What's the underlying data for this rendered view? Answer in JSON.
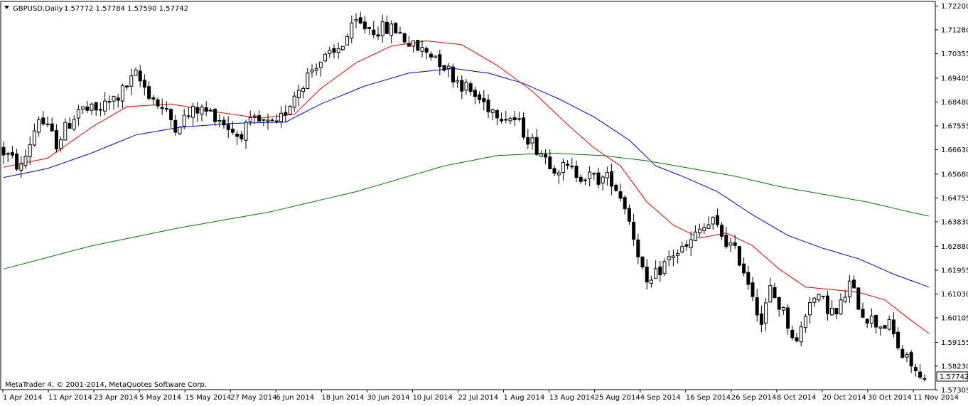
{
  "header": {
    "symbol": "GBPUSD,Daily",
    "ohlc": "1.57772 1.57784 1.57590 1.57742",
    "menu_icon": "triangle-down-icon"
  },
  "copyright": "MetaTrader 4, © 2001-2014, MetaQuotes Software Corp.",
  "current_price_label": "1.57742",
  "colors": {
    "background": "#ffffff",
    "candle_outline": "#000000",
    "candle_bull_fill": "#ffffff",
    "candle_bear_fill": "#000000",
    "ma_red": "#e00000",
    "ma_blue": "#0000c8",
    "ma_green": "#007800"
  },
  "chart_data": {
    "type": "candlestick",
    "grid": false,
    "ylim": [
      1.5732,
      1.7238
    ],
    "ytick_labels": [
      "1.72200",
      "1.71280",
      "1.70355",
      "1.69405",
      "1.68480",
      "1.67555",
      "1.66630",
      "1.65680",
      "1.64755",
      "1.63830",
      "1.62880",
      "1.61955",
      "1.61030",
      "1.60105",
      "1.59155",
      "1.58230",
      "1.57305"
    ],
    "xtick_labels": [
      "1 Apr 2014",
      "11 Apr 2014",
      "23 Apr 2014",
      "5 May 2014",
      "15 May 2014",
      "27 May 2014",
      "6 Jun 2014",
      "18 Jun 2014",
      "30 Jun 2014",
      "10 Jul 2014",
      "22 Jul 2014",
      "1 Aug 2014",
      "13 Aug 2014",
      "25 Aug 2014",
      "4 Sep 2014",
      "16 Sep 2014",
      "26 Sep 2014",
      "8 Oct 2014",
      "20 Oct 2014",
      "30 Oct 2014",
      "11 Nov 2014"
    ],
    "last_price": 1.57742,
    "ohlc_anchor": [
      [
        0,
        1.667
      ],
      [
        5,
        1.659
      ],
      [
        9,
        1.679
      ],
      [
        13,
        1.669
      ],
      [
        18,
        1.682
      ],
      [
        22,
        1.681
      ],
      [
        27,
        1.687
      ],
      [
        31,
        1.695
      ],
      [
        36,
        1.684
      ],
      [
        40,
        1.676
      ],
      [
        45,
        1.682
      ],
      [
        49,
        1.68
      ],
      [
        54,
        1.672
      ],
      [
        58,
        1.677
      ],
      [
        63,
        1.675
      ],
      [
        67,
        1.688
      ],
      [
        72,
        1.7
      ],
      [
        76,
        1.703
      ],
      [
        81,
        1.715
      ],
      [
        85,
        1.713
      ],
      [
        90,
        1.713
      ],
      [
        94,
        1.706
      ],
      [
        99,
        1.703
      ],
      [
        103,
        1.695
      ],
      [
        108,
        1.687
      ],
      [
        112,
        1.682
      ],
      [
        117,
        1.678
      ],
      [
        121,
        1.669
      ],
      [
        126,
        1.66
      ],
      [
        130,
        1.658
      ],
      [
        135,
        1.655
      ],
      [
        139,
        1.655
      ],
      [
        142,
        1.645
      ],
      [
        145,
        1.627
      ],
      [
        147,
        1.612
      ],
      [
        150,
        1.62
      ],
      [
        153,
        1.626
      ],
      [
        156,
        1.628
      ],
      [
        159,
        1.635
      ],
      [
        162,
        1.638
      ],
      [
        165,
        1.631
      ],
      [
        168,
        1.624
      ],
      [
        171,
        1.611
      ],
      [
        173,
        1.599
      ],
      [
        175,
        1.612
      ],
      [
        178,
        1.603
      ],
      [
        181,
        1.591
      ],
      [
        184,
        1.609
      ],
      [
        187,
        1.607
      ],
      [
        190,
        1.602
      ],
      [
        193,
        1.614
      ],
      [
        196,
        1.603
      ],
      [
        199,
        1.599
      ],
      [
        202,
        1.598
      ],
      [
        205,
        1.586
      ],
      [
        207,
        1.583
      ],
      [
        209,
        1.577
      ]
    ],
    "moving_averages": [
      {
        "name": "",
        "color": "#e00000",
        "points": [
          [
            0,
            1.6595
          ],
          [
            10,
            1.663
          ],
          [
            20,
            1.675
          ],
          [
            28,
            1.683
          ],
          [
            38,
            1.684
          ],
          [
            48,
            1.681
          ],
          [
            58,
            1.6785
          ],
          [
            66,
            1.68
          ],
          [
            72,
            1.69
          ],
          [
            80,
            1.7
          ],
          [
            88,
            1.7065
          ],
          [
            96,
            1.7085
          ],
          [
            104,
            1.707
          ],
          [
            112,
            1.699
          ],
          [
            120,
            1.689
          ],
          [
            128,
            1.676
          ],
          [
            134,
            1.667
          ],
          [
            140,
            1.66
          ],
          [
            146,
            1.646
          ],
          [
            152,
            1.637
          ],
          [
            158,
            1.632
          ],
          [
            164,
            1.634
          ],
          [
            170,
            1.629
          ],
          [
            176,
            1.62
          ],
          [
            182,
            1.613
          ],
          [
            188,
            1.612
          ],
          [
            194,
            1.611
          ],
          [
            200,
            1.608
          ],
          [
            206,
            1.6
          ],
          [
            210,
            1.595
          ]
        ]
      },
      {
        "name": "",
        "color": "#0000c8",
        "points": [
          [
            0,
            1.6555
          ],
          [
            10,
            1.659
          ],
          [
            20,
            1.665
          ],
          [
            30,
            1.672
          ],
          [
            40,
            1.675
          ],
          [
            52,
            1.6765
          ],
          [
            64,
            1.677
          ],
          [
            72,
            1.684
          ],
          [
            82,
            1.691
          ],
          [
            92,
            1.696
          ],
          [
            102,
            1.6978
          ],
          [
            110,
            1.696
          ],
          [
            118,
            1.692
          ],
          [
            126,
            1.686
          ],
          [
            134,
            1.679
          ],
          [
            142,
            1.67
          ],
          [
            148,
            1.66
          ],
          [
            154,
            1.656
          ],
          [
            162,
            1.65
          ],
          [
            170,
            1.641
          ],
          [
            178,
            1.633
          ],
          [
            186,
            1.628
          ],
          [
            194,
            1.624
          ],
          [
            202,
            1.618
          ],
          [
            210,
            1.613
          ]
        ]
      },
      {
        "name": "",
        "color": "#007800",
        "points": [
          [
            0,
            1.62
          ],
          [
            20,
            1.629
          ],
          [
            40,
            1.636
          ],
          [
            60,
            1.642
          ],
          [
            80,
            1.65
          ],
          [
            100,
            1.66
          ],
          [
            112,
            1.664
          ],
          [
            124,
            1.665
          ],
          [
            136,
            1.664
          ],
          [
            146,
            1.662
          ],
          [
            156,
            1.659
          ],
          [
            166,
            1.656
          ],
          [
            176,
            1.652
          ],
          [
            186,
            1.649
          ],
          [
            196,
            1.646
          ],
          [
            206,
            1.642
          ],
          [
            210,
            1.6405
          ]
        ]
      }
    ]
  }
}
